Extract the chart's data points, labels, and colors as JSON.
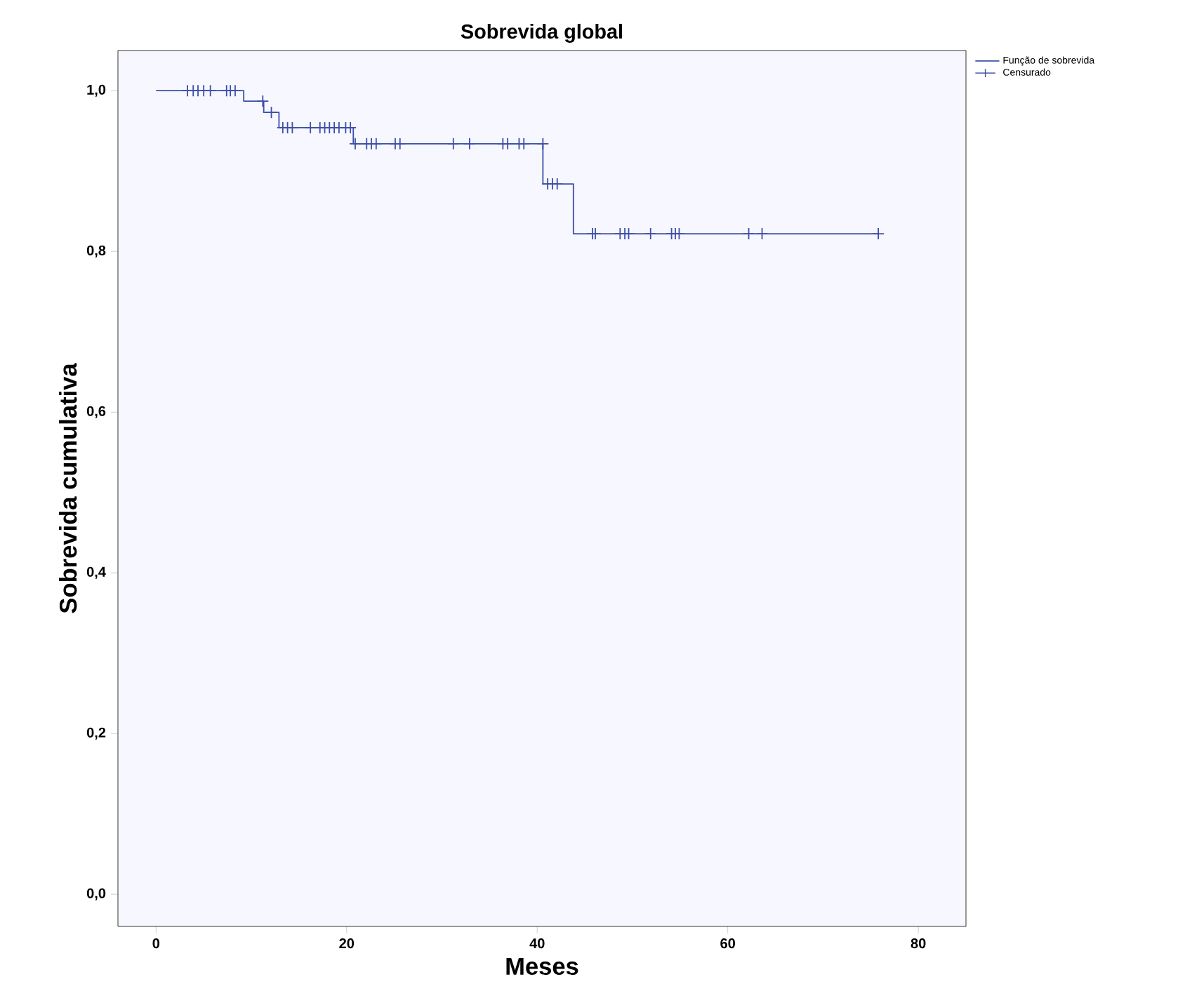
{
  "chart_data": {
    "type": "step",
    "title": "Sobrevida global",
    "xlabel": "Meses",
    "ylabel": "Sobrevida cumulativa",
    "xlim": [
      -4,
      85
    ],
    "ylim": [
      -0.04,
      1.05
    ],
    "xticks": [
      0,
      20,
      40,
      60,
      80
    ],
    "yticks": [
      {
        "value": 0,
        "label": "0,0"
      },
      {
        "value": 0.2,
        "label": "0,2"
      },
      {
        "value": 0.4,
        "label": "0,4"
      },
      {
        "value": 0.6,
        "label": "0,6"
      },
      {
        "value": 0.8,
        "label": "0,8"
      },
      {
        "value": 1,
        "label": "1,0"
      }
    ],
    "legend": "top right",
    "grid": false,
    "series": [
      {
        "name": "Função de sobrevida",
        "color": "#3c4fa8",
        "x": [
          0,
          9.2,
          11.3,
          12.9,
          20.7,
          40.6,
          43.8,
          75.8
        ],
        "values": [
          1.0,
          0.987,
          0.973,
          0.954,
          0.934,
          0.884,
          0.822,
          0.822
        ]
      },
      {
        "name": "Censurado",
        "type": "scatter",
        "marker": "cross",
        "color": "#3c4fa8",
        "x": [
          3.3,
          3.9,
          4.4,
          5.0,
          5.7,
          7.4,
          7.8,
          8.3,
          11.2,
          12.1,
          13.3,
          13.8,
          14.3,
          16.2,
          17.2,
          17.7,
          18.2,
          18.7,
          19.2,
          19.9,
          20.4,
          20.9,
          22.1,
          22.6,
          23.1,
          25.1,
          25.6,
          31.2,
          32.9,
          36.4,
          36.9,
          38.1,
          38.6,
          40.6,
          41.1,
          41.6,
          42.1,
          45.8,
          46.1,
          48.7,
          49.2,
          49.6,
          51.9,
          54.1,
          54.5,
          54.9,
          62.2,
          63.6,
          75.8
        ],
        "values": [
          1,
          1,
          1,
          1,
          1,
          1,
          1,
          1,
          0.987,
          0.973,
          0.954,
          0.954,
          0.954,
          0.954,
          0.954,
          0.954,
          0.954,
          0.954,
          0.954,
          0.954,
          0.954,
          0.934,
          0.934,
          0.934,
          0.934,
          0.934,
          0.934,
          0.934,
          0.934,
          0.934,
          0.934,
          0.934,
          0.934,
          0.934,
          0.884,
          0.884,
          0.884,
          0.822,
          0.822,
          0.822,
          0.822,
          0.822,
          0.822,
          0.822,
          0.822,
          0.822,
          0.822,
          0.822,
          0.822
        ]
      }
    ]
  }
}
